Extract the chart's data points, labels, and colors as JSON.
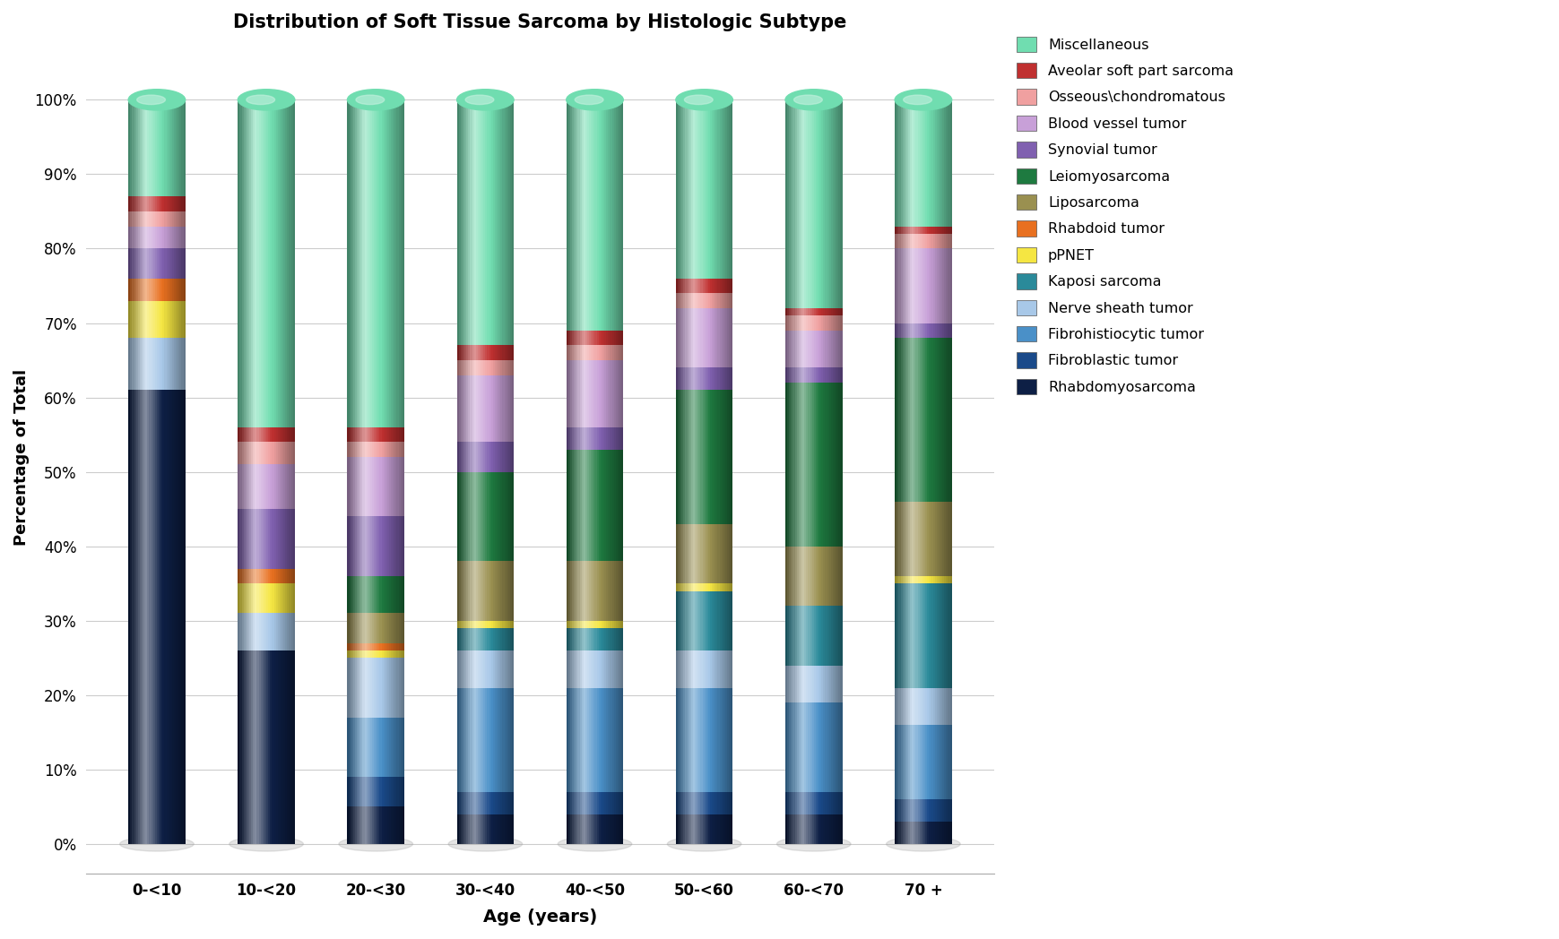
{
  "title": "Distribution of Soft Tissue Sarcoma by Histologic Subtype",
  "xlabel": "Age (years)",
  "ylabel": "Percentage of Total",
  "categories": [
    "0-<10",
    "10-<20",
    "20-<30",
    "30-<40",
    "40-<50",
    "50-<60",
    "60-<70",
    "70 +"
  ],
  "stack_order": [
    "Rhabdomyosarcoma",
    "Fibroblastic tumor",
    "Fibrohistiocytic tumor",
    "Nerve sheath tumor",
    "Kaposi sarcoma",
    "pPNET",
    "Rhabdoid tumor",
    "Liposarcoma",
    "Leiomyosarcoma",
    "Synovial tumor",
    "Blood vessel tumor",
    "Osseous_chondromatous",
    "Aveolar soft part sarcoma",
    "Miscellaneous"
  ],
  "legend_labels": [
    "Miscellaneous",
    "Aveolar soft part sarcoma",
    "Osseous\\chondromatous",
    "Blood vessel tumor",
    "Synovial tumor",
    "Leiomyosarcoma",
    "Liposarcoma",
    "Rhabdoid tumor",
    "pPNET",
    "Kaposi sarcoma",
    "Nerve sheath tumor",
    "Fibrohistiocytic tumor",
    "Fibroblastic tumor",
    "Rhabdomyosarcoma"
  ],
  "colors": {
    "Rhabdomyosarcoma": "#0D1F45",
    "Fibroblastic tumor": "#1A4A8A",
    "Fibrohistiocytic tumor": "#4A90C8",
    "Nerve sheath tumor": "#A8C8E8",
    "Kaposi sarcoma": "#2A8A9A",
    "pPNET": "#F5E642",
    "Rhabdoid tumor": "#E87020",
    "Liposarcoma": "#9A9050",
    "Leiomyosarcoma": "#1E7A40",
    "Synovial tumor": "#8060B0",
    "Blood vessel tumor": "#C8A0D8",
    "Osseous_chondromatous": "#F0A0A0",
    "Aveolar soft part sarcoma": "#C03030",
    "Miscellaneous": "#70DDB0"
  },
  "data": {
    "Rhabdomyosarcoma": [
      61,
      26,
      5,
      4,
      4,
      4,
      4,
      3
    ],
    "Fibroblastic tumor": [
      0,
      0,
      4,
      3,
      3,
      3,
      3,
      3
    ],
    "Fibrohistiocytic tumor": [
      0,
      0,
      8,
      14,
      14,
      14,
      12,
      10
    ],
    "Nerve sheath tumor": [
      7,
      5,
      8,
      5,
      5,
      5,
      5,
      5
    ],
    "Kaposi sarcoma": [
      0,
      0,
      0,
      3,
      3,
      8,
      8,
      14
    ],
    "pPNET": [
      5,
      4,
      1,
      1,
      1,
      1,
      0,
      1
    ],
    "Rhabdoid tumor": [
      3,
      2,
      1,
      0,
      0,
      0,
      0,
      0
    ],
    "Liposarcoma": [
      0,
      0,
      4,
      8,
      8,
      8,
      8,
      10
    ],
    "Leiomyosarcoma": [
      0,
      0,
      5,
      12,
      15,
      18,
      22,
      22
    ],
    "Synovial tumor": [
      4,
      8,
      8,
      4,
      3,
      3,
      2,
      2
    ],
    "Blood vessel tumor": [
      3,
      6,
      8,
      9,
      9,
      8,
      5,
      10
    ],
    "Osseous_chondromatous": [
      2,
      3,
      2,
      2,
      2,
      2,
      2,
      2
    ],
    "Aveolar soft part sarcoma": [
      2,
      2,
      2,
      2,
      2,
      2,
      1,
      1
    ],
    "Miscellaneous": [
      13,
      44,
      44,
      33,
      31,
      24,
      28,
      17
    ]
  }
}
